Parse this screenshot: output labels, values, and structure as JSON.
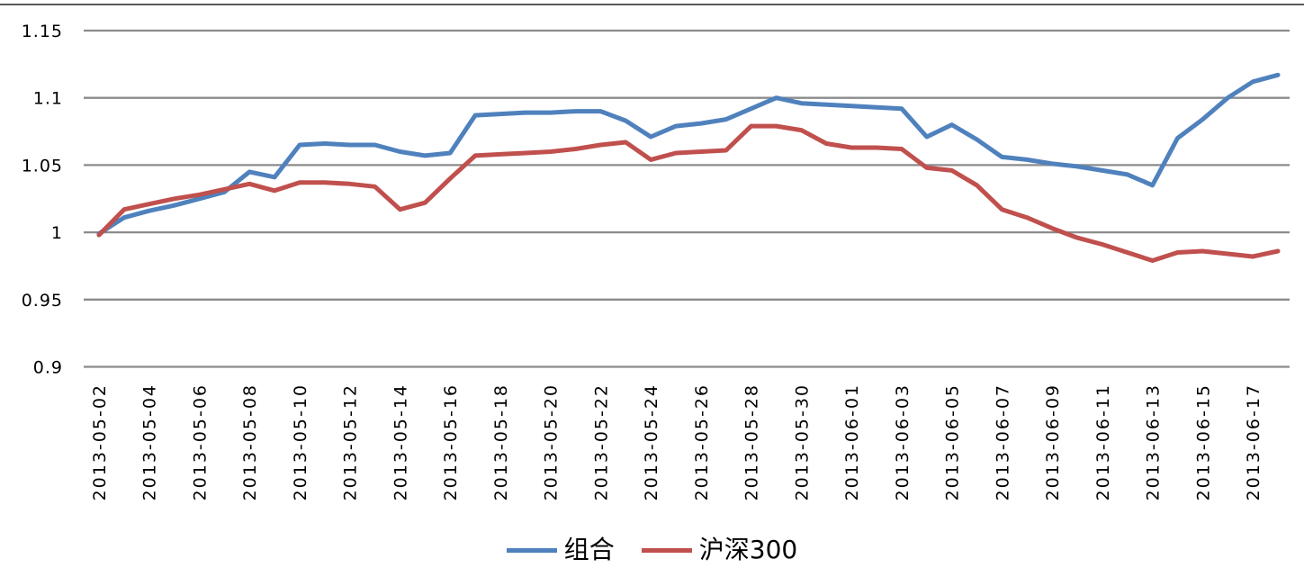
{
  "chart_data": {
    "type": "line",
    "title": "",
    "xlabel": "",
    "ylabel": "",
    "x": [
      "2013-05-02",
      "2013-05-03",
      "2013-05-04",
      "2013-05-05",
      "2013-05-06",
      "2013-05-07",
      "2013-05-08",
      "2013-05-09",
      "2013-05-10",
      "2013-05-11",
      "2013-05-12",
      "2013-05-13",
      "2013-05-14",
      "2013-05-15",
      "2013-05-16",
      "2013-05-17",
      "2013-05-18",
      "2013-05-19",
      "2013-05-20",
      "2013-05-21",
      "2013-05-22",
      "2013-05-23",
      "2013-05-24",
      "2013-05-25",
      "2013-05-26",
      "2013-05-27",
      "2013-05-28",
      "2013-05-29",
      "2013-05-30",
      "2013-05-31",
      "2013-06-01",
      "2013-06-02",
      "2013-06-03",
      "2013-06-04",
      "2013-06-05",
      "2013-06-06",
      "2013-06-07",
      "2013-06-08",
      "2013-06-09",
      "2013-06-10",
      "2013-06-11",
      "2013-06-12",
      "2013-06-13",
      "2013-06-14",
      "2013-06-15",
      "2013-06-16",
      "2013-06-17",
      "2013-06-18"
    ],
    "x_tick_interval": 2,
    "x_tick_labels": [
      "2013-05-02",
      "2013-05-04",
      "2013-05-06",
      "2013-05-08",
      "2013-05-10",
      "2013-05-12",
      "2013-05-14",
      "2013-05-16",
      "2013-05-18",
      "2013-05-20",
      "2013-05-22",
      "2013-05-24",
      "2013-05-26",
      "2013-05-28",
      "2013-05-30",
      "2013-06-01",
      "2013-06-03",
      "2013-06-05",
      "2013-06-07",
      "2013-06-09",
      "2013-06-11",
      "2013-06-13",
      "2013-06-15",
      "2013-06-17"
    ],
    "series": [
      {
        "name": "组合",
        "color": "#4F81BD",
        "values": [
          0.999,
          1.011,
          1.016,
          1.02,
          1.025,
          1.03,
          1.045,
          1.041,
          1.065,
          1.066,
          1.065,
          1.065,
          1.06,
          1.057,
          1.059,
          1.087,
          1.088,
          1.089,
          1.089,
          1.09,
          1.09,
          1.083,
          1.071,
          1.079,
          1.081,
          1.084,
          1.092,
          1.1,
          1.096,
          1.095,
          1.094,
          1.093,
          1.092,
          1.071,
          1.08,
          1.069,
          1.056,
          1.054,
          1.051,
          1.049,
          1.046,
          1.043,
          1.035,
          1.07,
          1.084,
          1.1,
          1.112,
          1.117
        ]
      },
      {
        "name": "沪深300",
        "color": "#C0504D",
        "values": [
          0.998,
          1.017,
          1.021,
          1.025,
          1.028,
          1.032,
          1.036,
          1.031,
          1.037,
          1.037,
          1.036,
          1.034,
          1.017,
          1.022,
          1.04,
          1.057,
          1.058,
          1.059,
          1.06,
          1.062,
          1.065,
          1.067,
          1.054,
          1.059,
          1.06,
          1.061,
          1.079,
          1.079,
          1.076,
          1.066,
          1.063,
          1.063,
          1.062,
          1.048,
          1.046,
          1.035,
          1.017,
          1.011,
          1.003,
          0.996,
          0.991,
          0.985,
          0.979,
          0.985,
          0.986,
          0.984,
          0.982,
          0.986
        ]
      }
    ],
    "ylim": [
      0.9,
      1.15
    ],
    "y_ticks": [
      1.15,
      1.1,
      1.05,
      1,
      0.95,
      0.9
    ],
    "y_tick_labels": [
      "1.15",
      "1.1",
      "1.05",
      "1",
      "0.95",
      "0.9"
    ],
    "grid": true,
    "legend_position": "bottom"
  },
  "style": {
    "gridline_color": "#8c8c8c",
    "top_border_color": "#5a5a5a",
    "tick_label_color": "#000000",
    "background_color": "#ffffff"
  }
}
